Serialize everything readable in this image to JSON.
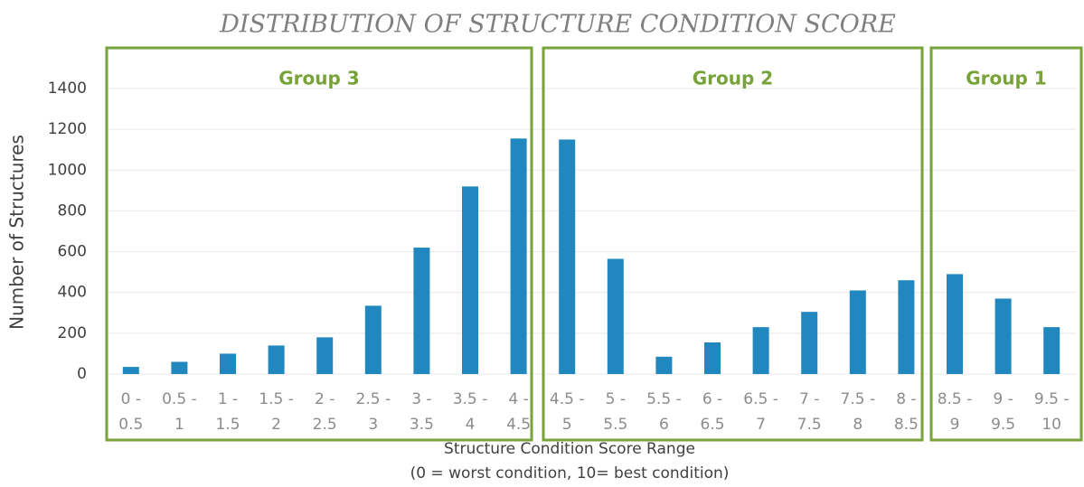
{
  "chart_data": {
    "type": "bar",
    "title": "DISTRIBUTION OF STRUCTURE CONDITION SCORE",
    "x_label": [
      "Structure Condition Score Range",
      "(0 = worst condition, 10= best condition)"
    ],
    "y_label": "Number of Structures",
    "categories": [
      "0 - 0.5",
      "0.5 - 1",
      "1 - 1.5",
      "1.5 - 2",
      "2 - 2.5",
      "2.5 - 3",
      "3 - 3.5",
      "3.5 - 4",
      "4 - 4.5",
      "4.5 - 5",
      "5 - 5.5",
      "5.5 - 6",
      "6 - 6.5",
      "6.5 - 7",
      "7 - 7.5",
      "7.5 - 8",
      "8 - 8.5",
      "8.5 - 9",
      "9 - 9.5",
      "9.5 - 10"
    ],
    "values": [
      35,
      60,
      100,
      140,
      180,
      335,
      620,
      920,
      1155,
      1150,
      565,
      85,
      155,
      230,
      305,
      410,
      460,
      490,
      370,
      230
    ],
    "color": "#2188bf",
    "ylim": [
      0,
      1400
    ],
    "yticks": [
      0,
      200,
      400,
      600,
      800,
      1000,
      1200,
      1400
    ],
    "grid": true,
    "annotations": [
      "Group 3",
      "Group 2",
      "Group 1"
    ]
  }
}
